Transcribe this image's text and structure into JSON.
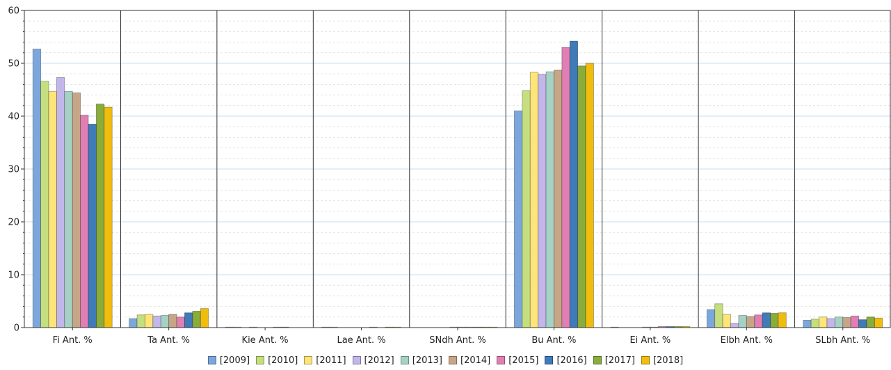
{
  "chart_data": {
    "type": "bar",
    "title": "",
    "xlabel": "",
    "ylabel": "",
    "ylim": [
      0,
      60
    ],
    "yticks": [
      0,
      10,
      20,
      30,
      40,
      50,
      60
    ],
    "grid": true,
    "legend_position": "bottom",
    "categories": [
      "Fi Ant. %",
      "Ta Ant. %",
      "Kie Ant. %",
      "Lae Ant. %",
      "SNdh Ant. %",
      "Bu Ant. %",
      "Ei Ant. %",
      "Elbh Ant. %",
      "SLbh Ant. %"
    ],
    "series": [
      {
        "name": "[2009]",
        "color": "#7ba7dc",
        "values": [
          52.7,
          1.7,
          0.1,
          0.1,
          0.0,
          41.0,
          0.1,
          3.4,
          1.4
        ]
      },
      {
        "name": "[2010]",
        "color": "#c6df7e",
        "values": [
          46.6,
          2.4,
          0.1,
          0.1,
          0.0,
          44.8,
          0.0,
          4.5,
          1.6
        ]
      },
      {
        "name": "[2011]",
        "color": "#fde57a",
        "values": [
          44.7,
          2.5,
          0.0,
          0.0,
          0.0,
          48.3,
          0.0,
          2.5,
          2.0
        ]
      },
      {
        "name": "[2012]",
        "color": "#c2b6ea",
        "values": [
          47.3,
          2.2,
          0.1,
          0.0,
          0.0,
          47.9,
          0.0,
          0.8,
          1.7
        ]
      },
      {
        "name": "[2013]",
        "color": "#a6d2c6",
        "values": [
          44.7,
          2.3,
          0.0,
          0.0,
          0.1,
          48.4,
          0.1,
          2.3,
          2.0
        ]
      },
      {
        "name": "[2014]",
        "color": "#c6a687",
        "values": [
          44.4,
          2.5,
          0.0,
          0.0,
          0.1,
          48.7,
          0.1,
          2.1,
          1.9
        ]
      },
      {
        "name": "[2015]",
        "color": "#e07fb4",
        "values": [
          40.2,
          2.0,
          0.1,
          0.1,
          0.1,
          53.0,
          0.2,
          2.4,
          2.2
        ]
      },
      {
        "name": "[2016]",
        "color": "#3f7ab9",
        "values": [
          38.5,
          2.8,
          0.1,
          0.0,
          0.1,
          54.2,
          0.2,
          2.8,
          1.5
        ]
      },
      {
        "name": "[2017]",
        "color": "#8aac3a",
        "values": [
          42.3,
          3.1,
          0.0,
          0.1,
          0.1,
          49.5,
          0.2,
          2.7,
          2.0
        ]
      },
      {
        "name": "[2018]",
        "color": "#f0bd0f",
        "values": [
          41.7,
          3.6,
          0.0,
          0.1,
          0.1,
          50.0,
          0.2,
          2.8,
          1.8
        ]
      }
    ]
  }
}
